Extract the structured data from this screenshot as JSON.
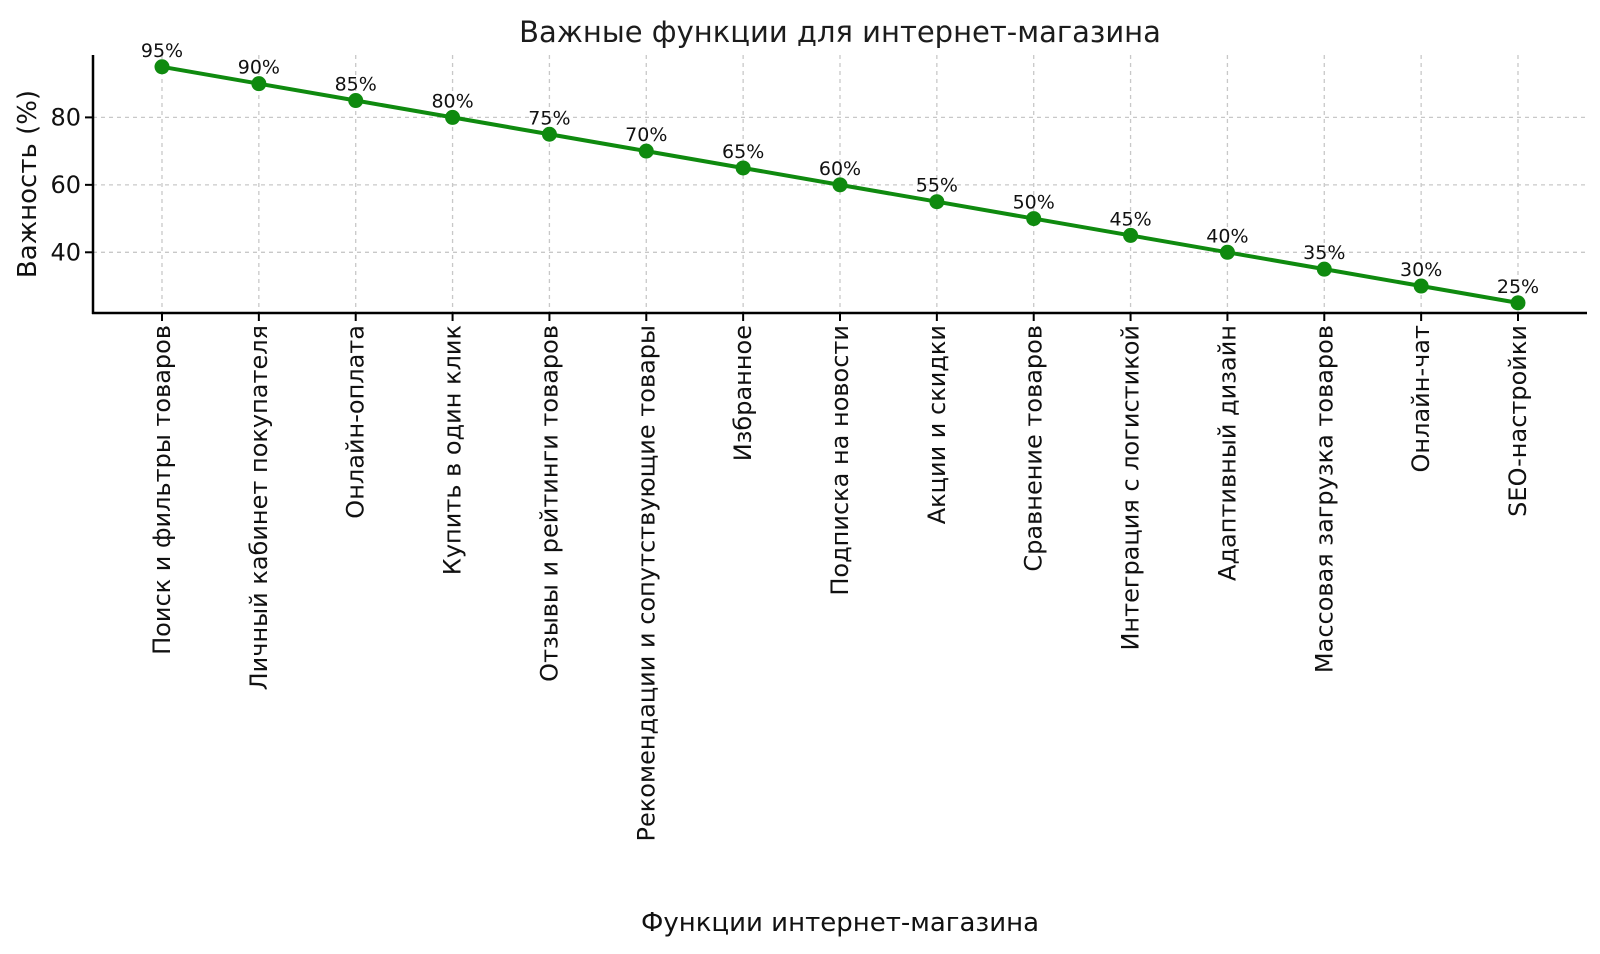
{
  "chart_data": {
    "type": "line",
    "title": "Важные функции для интернет-магазина",
    "xlabel": "Функции интернет-магазина",
    "ylabel": "Важность (%)",
    "categories": [
      "Поиск и фильтры товаров",
      "Личный кабинет покупателя",
      "Онлайн-оплата",
      "Купить в один клик",
      "Отзывы и рейтинги товаров",
      "Рекомендации и сопутствующие товары",
      "Избранное",
      "Подписка на новости",
      "Акции и скидки",
      "Сравнение товаров",
      "Интеграция с логистикой",
      "Адаптивный дизайн",
      "Массовая загрузка товаров",
      "Онлайн-чат",
      "SEO-настройки"
    ],
    "values": [
      95,
      90,
      85,
      80,
      75,
      70,
      65,
      60,
      55,
      50,
      45,
      40,
      35,
      30,
      25
    ],
    "point_labels": [
      "95%",
      "90%",
      "85%",
      "80%",
      "75%",
      "70%",
      "65%",
      "60%",
      "55%",
      "50%",
      "45%",
      "40%",
      "35%",
      "30%",
      "25%"
    ],
    "yticks": [
      40,
      60,
      80
    ],
    "ylim": [
      22,
      98.5
    ],
    "grid": true,
    "legend": "none",
    "line_color": "#0f8a0f",
    "marker_color": "#0f8a0f",
    "grid_color": "#c8c8c8",
    "spine_color": "#000000",
    "text_color": "#111111"
  }
}
